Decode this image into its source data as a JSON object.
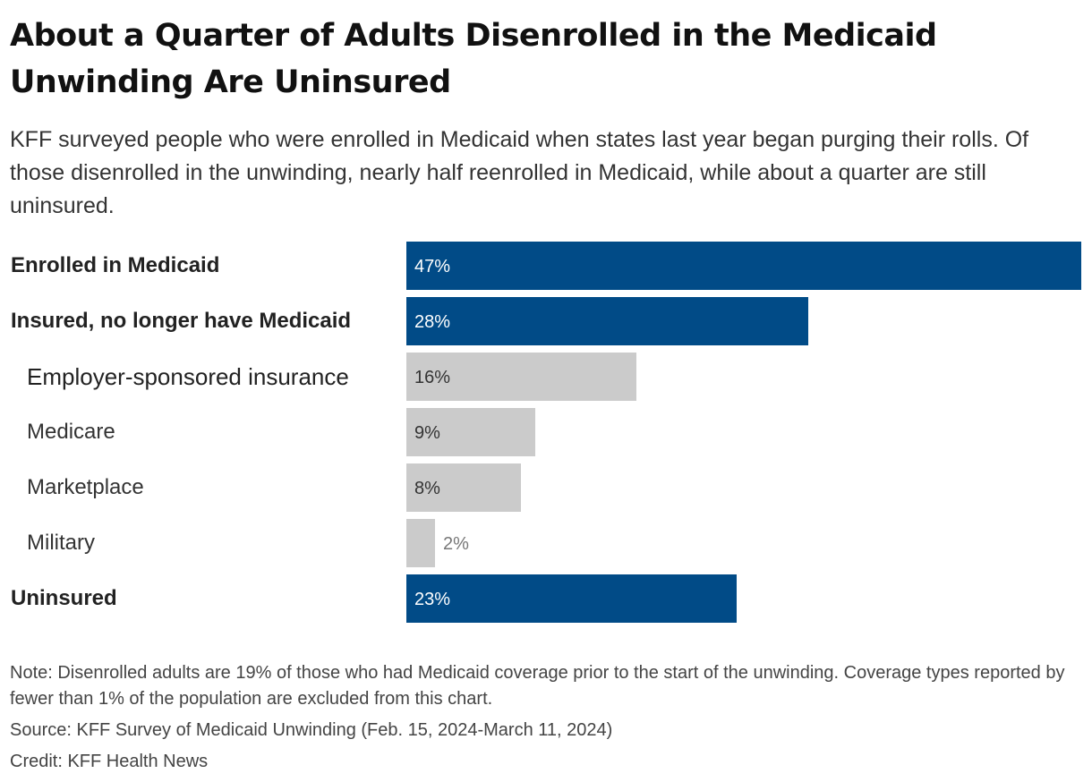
{
  "title": "About a Quarter of Adults Disenrolled in the Medicaid Unwinding Are Uninsured",
  "subtitle": "KFF surveyed people who were enrolled in Medicaid when states last year began purging their rolls. Of those disenrolled in the unwinding, nearly half reenrolled in Medicaid, while about a quarter are still uninsured.",
  "chart_data": {
    "type": "bar",
    "orientation": "horizontal",
    "value_suffix": "%",
    "colors": {
      "main": "#014b87",
      "sub": "#cbcbcb"
    },
    "categories": [
      "Enrolled in Medicaid",
      "Insured, no longer have Medicaid",
      "Employer-sponsored insurance",
      "Medicare",
      "Marketplace",
      "Military",
      "Uninsured"
    ],
    "values": [
      47,
      28,
      16,
      9,
      8,
      2,
      23
    ],
    "levels": [
      "main",
      "main",
      "sub",
      "sub",
      "sub",
      "sub",
      "main"
    ],
    "value_labels": [
      "47%",
      "28%",
      "16%",
      "9%",
      "8%",
      "2%",
      "23%"
    ],
    "xlim": [
      0,
      47
    ]
  },
  "footer": {
    "note": "Note: Disenrolled adults are 19% of those who had Medicaid coverage prior to the start of the unwinding. Coverage types reported by fewer than 1% of the population are excluded from this chart.",
    "source": "Source: KFF Survey of Medicaid Unwinding (Feb. 15, 2024-March 11, 2024)",
    "credit": "Credit: KFF Health News"
  }
}
